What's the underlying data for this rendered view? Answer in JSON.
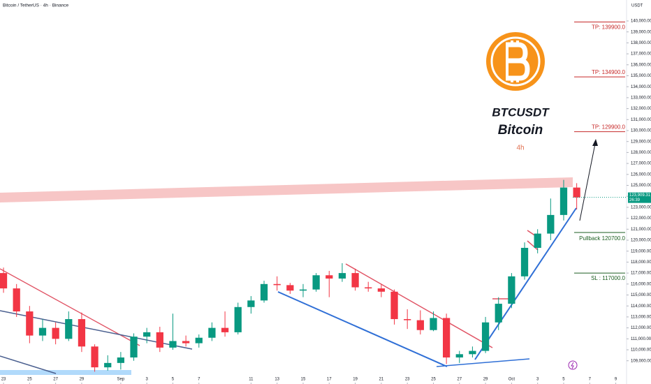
{
  "chart_data": {
    "type": "candlestick",
    "title": "Bitcoin / TetherUS · 4h · Binance",
    "y_axis_unit": "USDT",
    "symbol": "BTCUSDT",
    "subtitle": "Bitcoin",
    "timeframe": "4h",
    "up_color": "#089981",
    "down_color": "#f23645",
    "x": [
      0,
      1,
      2,
      3,
      4,
      5,
      6,
      7,
      8,
      9,
      10,
      11,
      12,
      13,
      14,
      15,
      16,
      17,
      18,
      19,
      20,
      21,
      22,
      23,
      24,
      25,
      26,
      27,
      28,
      29,
      30,
      31,
      32,
      33,
      34,
      35,
      36,
      37,
      38,
      39,
      40,
      41,
      42,
      43,
      44
    ],
    "open": [
      117000,
      115600,
      113500,
      111300,
      112000,
      111000,
      112800,
      110300,
      108400,
      108800,
      109300,
      111200,
      111600,
      110200,
      110800,
      110600,
      111100,
      112000,
      111600,
      113900,
      114500,
      116000,
      115900,
      115400,
      115500,
      116800,
      116500,
      117000,
      115700,
      115600,
      115300,
      112800,
      112700,
      111800,
      112900,
      109300,
      109600,
      109900,
      112500,
      114200,
      116700,
      119300,
      120600,
      122300,
      124800
    ],
    "high": [
      117500,
      116000,
      114000,
      112800,
      112500,
      113500,
      113400,
      110500,
      109500,
      109800,
      111500,
      112000,
      112100,
      113300,
      111300,
      111400,
      112500,
      113500,
      114300,
      114900,
      116300,
      116700,
      116100,
      116000,
      117000,
      117200,
      117900,
      117400,
      116200,
      116000,
      115500,
      113700,
      113600,
      113500,
      113300,
      109900,
      110300,
      113000,
      114800,
      117000,
      119800,
      121000,
      123800,
      125500,
      125200
    ],
    "low": [
      115200,
      113000,
      110600,
      110800,
      110500,
      110800,
      109800,
      108000,
      108100,
      108200,
      109000,
      110600,
      109800,
      110000,
      110300,
      110200,
      110800,
      111200,
      111400,
      113300,
      114300,
      115400,
      115100,
      114800,
      115300,
      114800,
      116200,
      115400,
      115300,
      114800,
      112300,
      111900,
      111400,
      111700,
      108700,
      108800,
      109300,
      109700,
      111800,
      113800,
      116400,
      118800,
      120000,
      121800,
      122800
    ],
    "close": [
      115600,
      113500,
      111300,
      112000,
      111000,
      112800,
      110300,
      108400,
      108800,
      109300,
      111200,
      111600,
      110200,
      110800,
      110600,
      111100,
      112000,
      111600,
      113900,
      114500,
      116000,
      115900,
      115400,
      115500,
      116800,
      116500,
      117000,
      115700,
      115600,
      115300,
      112800,
      112700,
      111800,
      112900,
      109300,
      109600,
      109900,
      112500,
      114200,
      116700,
      119300,
      120600,
      122300,
      124800,
      123900
    ],
    "xlim": [
      -0.27,
      47.72
    ],
    "xticks": [
      {
        "value": 0,
        "label": "23"
      },
      {
        "value": 2,
        "label": "25"
      },
      {
        "value": 4,
        "label": "27"
      },
      {
        "value": 6,
        "label": "29"
      },
      {
        "value": 9,
        "label": "Sep"
      },
      {
        "value": 11,
        "label": "3"
      },
      {
        "value": 13,
        "label": "5"
      },
      {
        "value": 15,
        "label": "7"
      },
      {
        "value": 19,
        "label": "11"
      },
      {
        "value": 21,
        "label": "13"
      },
      {
        "value": 23,
        "label": "15"
      },
      {
        "value": 25,
        "label": "17"
      },
      {
        "value": 27,
        "label": "19"
      },
      {
        "value": 29,
        "label": "21"
      },
      {
        "value": 31,
        "label": "23"
      },
      {
        "value": 33,
        "label": "25"
      },
      {
        "value": 35,
        "label": "27"
      },
      {
        "value": 37,
        "label": "29"
      },
      {
        "value": 39,
        "label": "Oct"
      },
      {
        "value": 41,
        "label": "3"
      },
      {
        "value": 43,
        "label": "5"
      },
      {
        "value": 45,
        "label": "7"
      },
      {
        "value": 47,
        "label": "9"
      }
    ],
    "ylim": [
      106880,
      141910
    ],
    "yticks": [
      {
        "value": 109000,
        "label": "109,000.00"
      },
      {
        "value": 110000,
        "label": "110,000.00"
      },
      {
        "value": 111000,
        "label": "111,000.00"
      },
      {
        "value": 112000,
        "label": "112,000.00"
      },
      {
        "value": 113000,
        "label": "113,000.00"
      },
      {
        "value": 114000,
        "label": "114,000.00"
      },
      {
        "value": 115000,
        "label": "115,000.00"
      },
      {
        "value": 116000,
        "label": "116,000.00"
      },
      {
        "value": 117000,
        "label": "117,000.00"
      },
      {
        "value": 118000,
        "label": "118,000.00"
      },
      {
        "value": 119000,
        "label": "119,000.00"
      },
      {
        "value": 120000,
        "label": "120,000.00"
      },
      {
        "value": 121000,
        "label": "121,000.00"
      },
      {
        "value": 122000,
        "label": "122,000.00"
      },
      {
        "value": 123000,
        "label": "123,000.00"
      },
      {
        "value": 124000,
        "label": "124,000.00"
      },
      {
        "value": 125000,
        "label": "125,000.00"
      },
      {
        "value": 126000,
        "label": "126,000.00"
      },
      {
        "value": 127000,
        "label": "127,000.00"
      },
      {
        "value": 128000,
        "label": "128,000.00"
      },
      {
        "value": 129000,
        "label": "129,000.00"
      },
      {
        "value": 130000,
        "label": "130,000.00"
      },
      {
        "value": 131000,
        "label": "131,000.00"
      },
      {
        "value": 132000,
        "label": "132,000.00"
      },
      {
        "value": 133000,
        "label": "133,000.00"
      },
      {
        "value": 134000,
        "label": "134,000.00"
      },
      {
        "value": 135000,
        "label": "135,000.00"
      },
      {
        "value": 136000,
        "label": "136,000.00"
      },
      {
        "value": 137000,
        "label": "137,000.00"
      },
      {
        "value": 138000,
        "label": "138,000.00"
      },
      {
        "value": 139000,
        "label": "139,000.00"
      },
      {
        "value": 140000,
        "label": "140,000.00"
      }
    ],
    "levels": [
      {
        "label": "TP: 139900.0",
        "value": 139900,
        "color": "#c62828"
      },
      {
        "label": "TP: 134900.0",
        "value": 134900,
        "color": "#c62828"
      },
      {
        "label": "TP: 129900.0",
        "value": 129900,
        "color": "#c62828"
      },
      {
        "label": "Pullback 120700.0",
        "value": 120700,
        "color": "#1b5e20"
      },
      {
        "label": "SL : 117000.0",
        "value": 117000,
        "color": "#1b5e20"
      }
    ],
    "last_price": {
      "value": 123909.31,
      "label": "123,909.31"
    },
    "countdown": "26:39"
  }
}
